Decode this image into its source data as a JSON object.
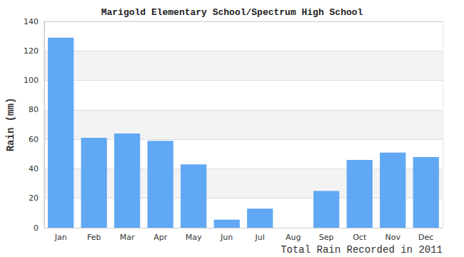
{
  "chart_data": {
    "type": "bar",
    "title": "Marigold Elementary School/Spectrum High School",
    "x_label": "Total Rain Recorded in 2011",
    "y_label": "Rain (mm)",
    "categories": [
      "Jan",
      "Feb",
      "Mar",
      "Apr",
      "May",
      "Jun",
      "Jul",
      "Aug",
      "Sep",
      "Oct",
      "Nov",
      "Dec"
    ],
    "values": [
      129,
      61,
      64,
      59,
      43,
      5.5,
      13,
      0,
      25,
      46,
      51,
      48
    ],
    "color": "#60a8f4",
    "ylim": [
      0,
      140
    ],
    "yticks": [
      0,
      20,
      40,
      60,
      80,
      100,
      120,
      140
    ],
    "grid": true
  }
}
